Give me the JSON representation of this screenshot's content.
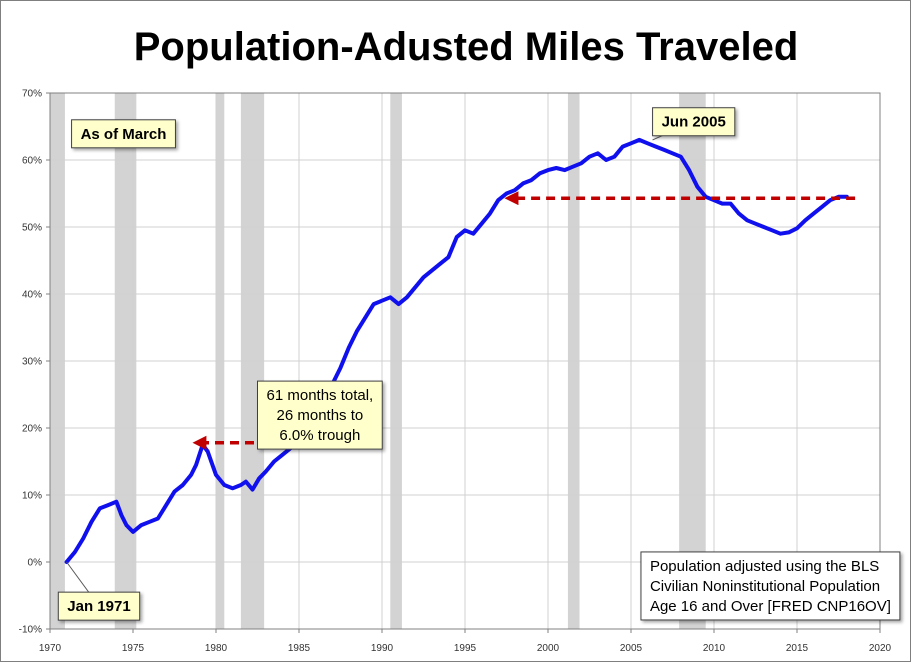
{
  "chart_data": {
    "type": "line",
    "title": "Population-Adusted Miles Traveled",
    "xlabel": "",
    "ylabel": "",
    "xlim": [
      1970,
      2020
    ],
    "ylim": [
      -10,
      70
    ],
    "x_ticks": [
      1970,
      1975,
      1980,
      1985,
      1990,
      1995,
      2000,
      2005,
      2010,
      2015,
      2020
    ],
    "x_tick_labels": [
      "1970",
      "1975",
      "1980",
      "1985",
      "1990",
      "1995",
      "2000",
      "2005",
      "2010",
      "2015",
      "2020"
    ],
    "y_ticks": [
      -10,
      0,
      10,
      20,
      30,
      40,
      50,
      60,
      70
    ],
    "y_tick_labels": [
      "-10%",
      "0%",
      "10%",
      "20%",
      "30%",
      "40%",
      "50%",
      "60%",
      "70%"
    ],
    "grid": true,
    "recessions": [
      {
        "start": 1970.0,
        "end": 1970.9
      },
      {
        "start": 1973.9,
        "end": 1975.2
      },
      {
        "start": 1980.0,
        "end": 1980.5
      },
      {
        "start": 1981.5,
        "end": 1982.9
      },
      {
        "start": 1990.5,
        "end": 1991.2
      },
      {
        "start": 2001.2,
        "end": 2001.9
      },
      {
        "start": 2007.9,
        "end": 2009.5
      }
    ],
    "series": [
      {
        "name": "Population-Adjusted Miles Traveled",
        "color": "#1010ee",
        "x": [
          1971.0,
          1971.5,
          1972.0,
          1972.5,
          1973.0,
          1973.5,
          1974.0,
          1974.3,
          1974.6,
          1975.0,
          1975.5,
          1976.0,
          1976.5,
          1977.0,
          1977.5,
          1978.0,
          1978.5,
          1978.8,
          1979.0,
          1979.2,
          1979.5,
          1980.0,
          1980.5,
          1981.0,
          1981.5,
          1981.8,
          1982.2,
          1982.6,
          1983.0,
          1983.5,
          1984.0,
          1984.5,
          1985.0,
          1985.5,
          1986.0,
          1986.5,
          1987.0,
          1987.5,
          1988.0,
          1988.5,
          1989.0,
          1989.5,
          1990.0,
          1990.5,
          1991.0,
          1991.5,
          1992.0,
          1992.5,
          1993.0,
          1993.5,
          1994.0,
          1994.5,
          1995.0,
          1995.5,
          1996.0,
          1996.5,
          1997.0,
          1997.5,
          1998.0,
          1998.5,
          1999.0,
          1999.5,
          2000.0,
          2000.5,
          2001.0,
          2001.5,
          2002.0,
          2002.5,
          2003.0,
          2003.5,
          2004.0,
          2004.5,
          2005.0,
          2005.5,
          2006.0,
          2006.5,
          2007.0,
          2007.5,
          2008.0,
          2008.5,
          2009.0,
          2009.5,
          2010.0,
          2010.5,
          2011.0,
          2011.5,
          2012.0,
          2012.5,
          2013.0,
          2013.5,
          2014.0,
          2014.5,
          2015.0,
          2015.5,
          2016.0,
          2016.5,
          2017.0,
          2017.5,
          2018.0
        ],
        "y": [
          0.0,
          1.5,
          3.5,
          6.0,
          8.0,
          8.5,
          9.0,
          7.0,
          5.5,
          4.5,
          5.5,
          6.0,
          6.5,
          8.5,
          10.5,
          11.5,
          13.0,
          14.5,
          16.0,
          17.5,
          16.5,
          13.0,
          11.5,
          11.0,
          11.5,
          12.0,
          10.8,
          12.5,
          13.5,
          15.0,
          16.0,
          17.0,
          19.0,
          21.0,
          22.5,
          24.0,
          26.5,
          29.0,
          32.0,
          34.5,
          36.5,
          38.5,
          39.0,
          39.5,
          38.5,
          39.5,
          41.0,
          42.5,
          43.5,
          44.5,
          45.5,
          48.5,
          49.5,
          49.0,
          50.5,
          52.0,
          54.0,
          55.0,
          55.5,
          56.5,
          57.0,
          58.0,
          58.5,
          58.8,
          58.5,
          59.0,
          59.5,
          60.5,
          61.0,
          60.0,
          60.5,
          62.0,
          62.5,
          63.0,
          62.5,
          62.0,
          61.5,
          61.0,
          60.5,
          58.5,
          56.0,
          54.5,
          54.0,
          53.5,
          53.5,
          52.0,
          51.0,
          50.5,
          50.0,
          49.5,
          49.0,
          49.2,
          49.8,
          51.0,
          52.0,
          53.0,
          54.0,
          54.5,
          54.5
        ]
      }
    ],
    "annotations": [
      {
        "id": "as_of",
        "lines": [
          "As of March"
        ],
        "anchor_x": 1971.3,
        "anchor_y": 66.0,
        "pointer": null
      },
      {
        "id": "jun_2005",
        "lines": [
          "Jun 2005"
        ],
        "anchor_x": 2006.3,
        "anchor_y": 67.8,
        "pointer": {
          "x": 2006.3,
          "y": 63.0
        }
      },
      {
        "id": "jan_1971",
        "lines": [
          "Jan 1971"
        ],
        "anchor_x": 1970.5,
        "anchor_y": -4.5,
        "pointer": {
          "x": 1971.0,
          "y": 0.0
        }
      },
      {
        "id": "trough_note",
        "lines": [
          "61 months total,",
          "26 months to",
          "6.0% trough"
        ],
        "anchor_x": 1982.5,
        "anchor_y": 27.0,
        "pointer": {
          "x": 1984.8,
          "y": 18.3
        }
      },
      {
        "id": "population_note",
        "lines": [
          "Population adjusted using the BLS",
          "Civilian Noninstitutional Population",
          "Age 16 and Over  [FRED CNP16OV]"
        ],
        "anchor_x": 2005.6,
        "anchor_y": 1.5,
        "pointer": null
      }
    ],
    "arrows": [
      {
        "id": "arrow_1979",
        "from_x": 1985.0,
        "to_x": 1979.0,
        "y": 17.8
      },
      {
        "id": "arrow_2005",
        "from_x": 2018.5,
        "to_x": 1997.8,
        "y": 54.3
      }
    ],
    "colors": {
      "line": "#1010ee",
      "recession": "#d3d3d3",
      "arrow": "#c00000",
      "callout_fill": "#ffffcc",
      "note_fill": "#ffffff",
      "grid": "#d0d0d0"
    }
  }
}
